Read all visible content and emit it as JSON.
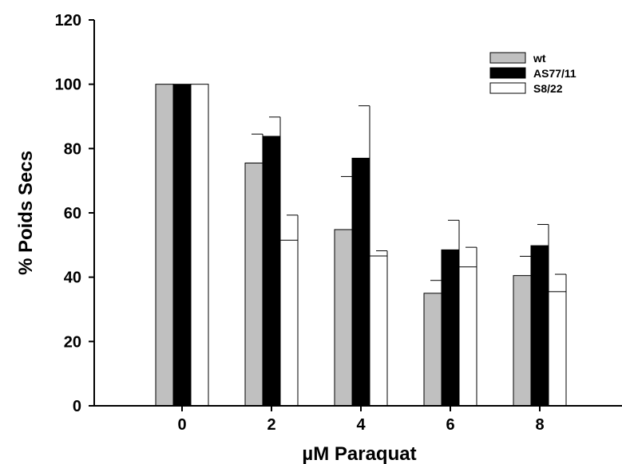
{
  "chart_data": {
    "type": "bar",
    "title": "",
    "xlabel": "µM Paraquat",
    "ylabel": "% Poids Secs",
    "categories": [
      "0",
      "2",
      "4",
      "6",
      "8"
    ],
    "ylim": [
      0,
      120
    ],
    "yticks": [
      "0",
      "20",
      "40",
      "60",
      "80",
      "100",
      "120"
    ],
    "grid": false,
    "legend_position": "top-right",
    "error_bars": "upper",
    "series": [
      {
        "name": "wt",
        "color": "#c0c0c0",
        "values": [
          100,
          75.5,
          54.8,
          35.0,
          40.5
        ],
        "errors": [
          0,
          9.0,
          16.5,
          4.0,
          6.0
        ]
      },
      {
        "name": "AS77/11",
        "color": "#000000",
        "values": [
          100,
          83.8,
          77.0,
          48.5,
          49.8
        ],
        "errors": [
          0,
          6.0,
          16.3,
          9.2,
          6.6
        ]
      },
      {
        "name": "S8/22",
        "color": "#ffffff",
        "values": [
          100,
          51.5,
          46.6,
          43.2,
          35.5
        ],
        "errors": [
          0,
          7.8,
          1.6,
          6.1,
          5.4
        ]
      }
    ]
  }
}
